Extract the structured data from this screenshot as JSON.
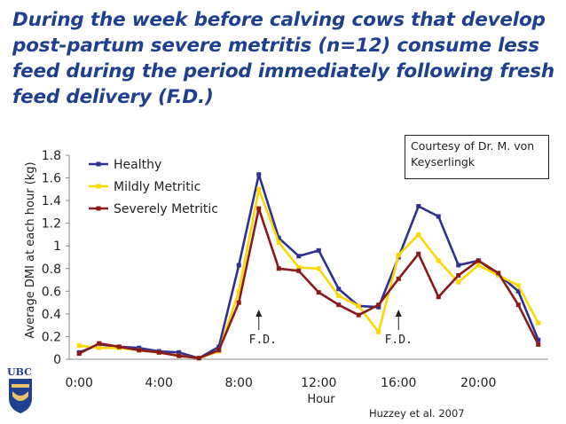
{
  "slide": {
    "title": "During the week before calving cows that develop post-partum severe metritis (n=12) consume less feed during the period immediately following fresh feed delivery (F.D.)",
    "courtesy_line1": "Courtesy of Dr. M. von",
    "courtesy_line2": "Keyserlingk",
    "citation": "Huzzey et al. 2007",
    "logo_text": "UBC"
  },
  "chart_data": {
    "type": "line",
    "xlabel": "Hour",
    "ylabel": "Average DMI at each hour (kg)",
    "x": [
      0,
      1,
      2,
      3,
      4,
      5,
      6,
      7,
      8,
      9,
      10,
      11,
      12,
      13,
      14,
      15,
      16,
      17,
      18,
      19,
      20,
      21,
      22,
      23
    ],
    "x_ticks": [
      0,
      4,
      8,
      12,
      16,
      20
    ],
    "x_tick_labels": [
      "0:00",
      "4:00",
      "8:00",
      "12:00",
      "16:00",
      "20:00"
    ],
    "xlim": [
      -0.5,
      23.5
    ],
    "ylim": [
      0,
      1.8
    ],
    "y_ticks": [
      0,
      0.2,
      0.4,
      0.6,
      0.8,
      1,
      1.2,
      1.4,
      1.6,
      1.8
    ],
    "y_tick_labels": [
      "0",
      "0.2",
      "0.4",
      "0.6",
      "0.8",
      "1",
      "1.2",
      "1.4",
      "1.6",
      "1.8"
    ],
    "grid": false,
    "legend_position": "top-left",
    "series": [
      {
        "name": "Healthy",
        "color": "#2e3192",
        "values": [
          0.06,
          0.13,
          0.11,
          0.1,
          0.07,
          0.06,
          0.01,
          0.11,
          0.83,
          1.63,
          1.07,
          0.91,
          0.96,
          0.62,
          0.47,
          0.46,
          0.9,
          1.35,
          1.26,
          0.83,
          0.87,
          0.75,
          0.6,
          0.17
        ]
      },
      {
        "name": "Mildly Metritic",
        "color": "#ffd700",
        "values": [
          0.12,
          0.1,
          0.1,
          0.08,
          0.06,
          0.03,
          0.01,
          0.07,
          0.6,
          1.5,
          1.03,
          0.81,
          0.8,
          0.56,
          0.47,
          0.24,
          0.92,
          1.1,
          0.87,
          0.68,
          0.83,
          0.74,
          0.65,
          0.32
        ]
      },
      {
        "name": "Severely Metritic",
        "color": "#8b1a1a",
        "values": [
          0.05,
          0.14,
          0.11,
          0.08,
          0.06,
          0.03,
          0.01,
          0.08,
          0.5,
          1.33,
          0.8,
          0.78,
          0.59,
          0.48,
          0.39,
          0.48,
          0.71,
          0.93,
          0.55,
          0.74,
          0.87,
          0.76,
          0.48,
          0.13
        ]
      }
    ],
    "annotations": [
      {
        "text": "F.D.",
        "x": 9.2,
        "arrow_x": 9
      },
      {
        "text": "F.D.",
        "x": 16.0,
        "arrow_x": 16
      }
    ]
  }
}
